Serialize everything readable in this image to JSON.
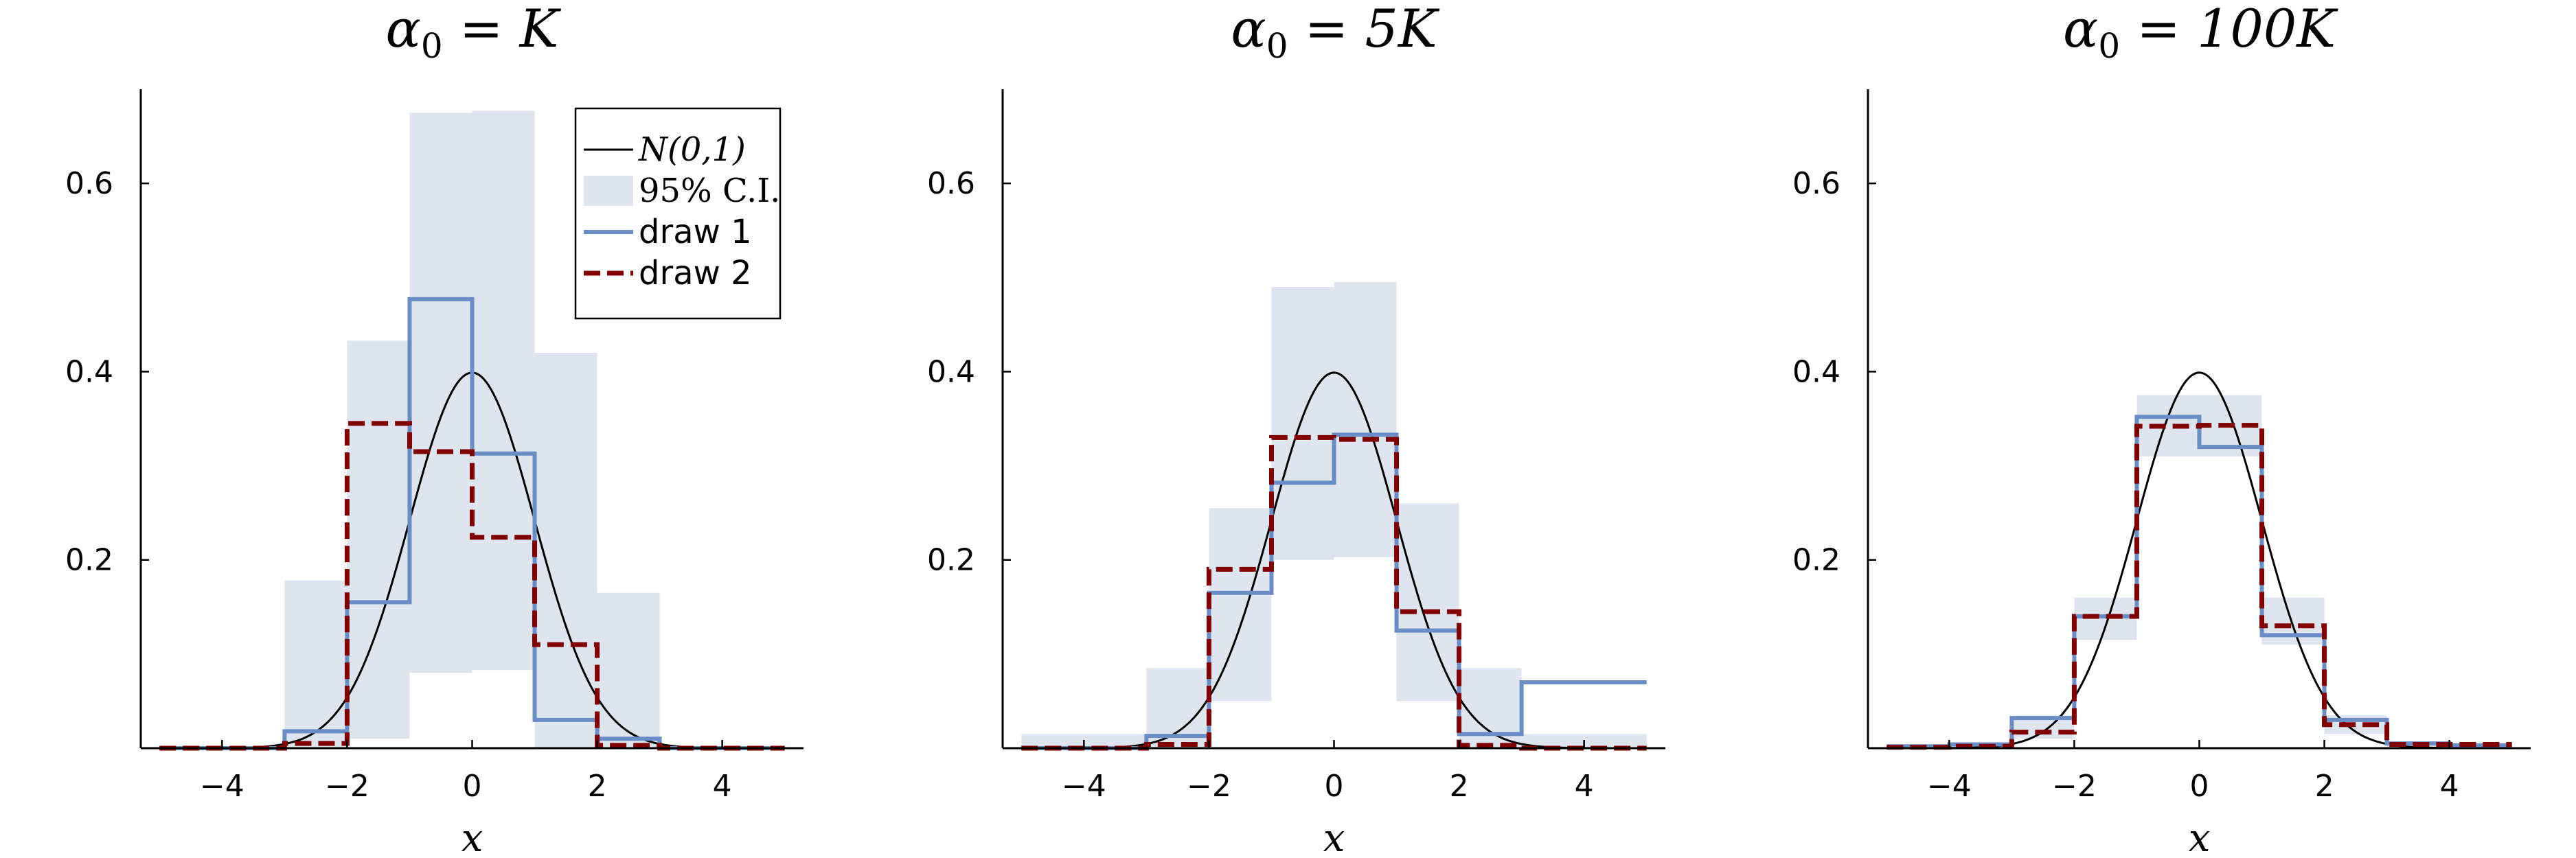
{
  "chart_data": [
    {
      "type": "line",
      "title_prefix": "α",
      "title_subscript": "0",
      "title_suffix": " = K",
      "xlabel": "x",
      "xlim": [
        -5.3,
        5.3
      ],
      "ylim": [
        0,
        0.7
      ],
      "xticks": [
        -4,
        -2,
        0,
        2,
        4
      ],
      "xtick_labels": [
        "−4",
        "−2",
        "0",
        "2",
        "4"
      ],
      "yticks": [
        0.2,
        0.4,
        0.6
      ],
      "ytick_labels": [
        "0.2",
        "0.4",
        "0.6"
      ],
      "bin_edges": [
        -5,
        -4,
        -3,
        -2,
        -1,
        0,
        1,
        2,
        3,
        4,
        5
      ],
      "ci_lower": [
        0,
        0,
        0,
        0.01,
        0.08,
        0.083,
        0,
        0,
        0,
        0
      ],
      "ci_upper": [
        0,
        0,
        0.178,
        0.433,
        0.675,
        0.677,
        0.42,
        0.165,
        0,
        0
      ],
      "series": [
        {
          "name": "draw 1",
          "values": [
            0,
            0,
            0.018,
            0.155,
            0.477,
            0.313,
            0.03,
            0.01,
            0,
            0
          ]
        },
        {
          "name": "draw 2",
          "values": [
            0,
            0,
            0.005,
            0.345,
            0.315,
            0.224,
            0.11,
            0.003,
            0,
            0
          ]
        }
      ],
      "legend": {
        "placement": "top-right",
        "entries": [
          {
            "label": "N(0,1)",
            "style": "line",
            "color": "#000000"
          },
          {
            "label": "95% C.I.",
            "style": "band",
            "color": "#dfe5ef"
          },
          {
            "label": "draw 1",
            "style": "line",
            "color": "#6a8dc5"
          },
          {
            "label": "draw 2",
            "style": "dashed",
            "color": "#800000"
          }
        ]
      }
    },
    {
      "type": "line",
      "title_prefix": "α",
      "title_subscript": "0",
      "title_suffix": " = 5K",
      "xlabel": "x",
      "xlim": [
        -5.3,
        5.3
      ],
      "ylim": [
        0,
        0.7
      ],
      "xticks": [
        -4,
        -2,
        0,
        2,
        4
      ],
      "xtick_labels": [
        "−4",
        "−2",
        "0",
        "2",
        "4"
      ],
      "yticks": [
        0.2,
        0.4,
        0.6
      ],
      "ytick_labels": [
        "0.2",
        "0.4",
        "0.6"
      ],
      "bin_edges": [
        -5,
        -4,
        -3,
        -2,
        -1,
        0,
        1,
        2,
        3,
        4,
        5
      ],
      "ci_lower": [
        0,
        0,
        0,
        0.05,
        0.2,
        0.203,
        0.05,
        0,
        0,
        0
      ],
      "ci_upper": [
        0.015,
        0.015,
        0.085,
        0.255,
        0.49,
        0.495,
        0.26,
        0.085,
        0.015,
        0.015
      ],
      "series": [
        {
          "name": "draw 1",
          "values": [
            0,
            0,
            0.013,
            0.165,
            0.282,
            0.333,
            0.125,
            0.015,
            0.07,
            0.07
          ]
        },
        {
          "name": "draw 2",
          "values": [
            0,
            0,
            0.004,
            0.19,
            0.33,
            0.328,
            0.145,
            0.003,
            0,
            0
          ]
        }
      ]
    },
    {
      "type": "line",
      "title_prefix": "α",
      "title_subscript": "0",
      "title_suffix": " = 100K",
      "xlabel": "x",
      "xlim": [
        -5.3,
        5.3
      ],
      "ylim": [
        0,
        0.7
      ],
      "xticks": [
        -4,
        -2,
        0,
        2,
        4
      ],
      "xtick_labels": [
        "−4",
        "−2",
        "0",
        "2",
        "4"
      ],
      "yticks": [
        0.2,
        0.4,
        0.6
      ],
      "ytick_labels": [
        "0.2",
        "0.4",
        "0.6"
      ],
      "bin_edges": [
        -5,
        -4,
        -3,
        -2,
        -1,
        0,
        1,
        2,
        3,
        4,
        5
      ],
      "ci_lower": [
        0,
        0,
        0.01,
        0.115,
        0.31,
        0.31,
        0.11,
        0.015,
        0,
        0
      ],
      "ci_upper": [
        0.003,
        0.005,
        0.035,
        0.16,
        0.375,
        0.375,
        0.16,
        0.035,
        0.005,
        0.003
      ],
      "series": [
        {
          "name": "draw 1",
          "values": [
            0.002,
            0.004,
            0.032,
            0.14,
            0.352,
            0.32,
            0.12,
            0.03,
            0.005,
            0.003
          ]
        },
        {
          "name": "draw 2",
          "values": [
            0.001,
            0.002,
            0.017,
            0.14,
            0.342,
            0.343,
            0.13,
            0.025,
            0.004,
            0.004
          ]
        }
      ]
    }
  ],
  "colors": {
    "ci_band": "#dfe5ef",
    "draw1": "#6a8dc5",
    "draw2": "#800000",
    "normal": "#000000"
  }
}
